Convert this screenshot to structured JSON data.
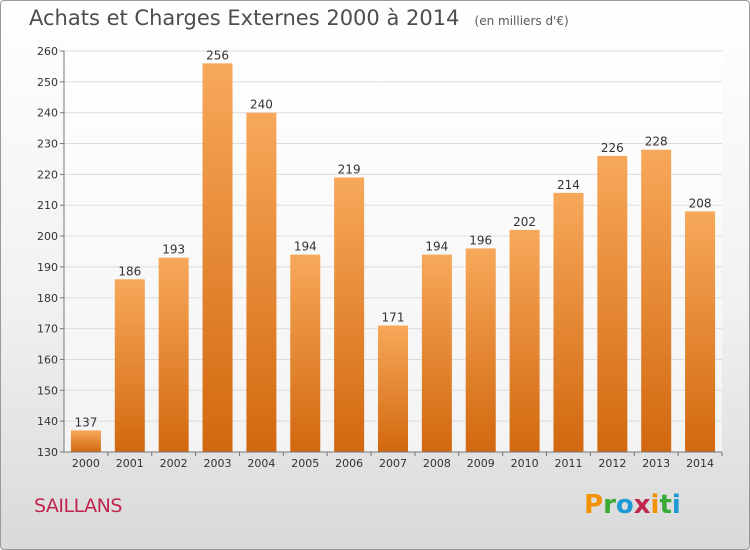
{
  "title": "Achats et Charges Externes 2000 à 2014",
  "unit": "(en milliers d'€)",
  "commune": "SAILLANS",
  "logo": {
    "letters": [
      "P",
      "r",
      "o",
      "x",
      "i",
      "t",
      "i"
    ],
    "colors": [
      "#f39200",
      "#3aa935",
      "#1d9ad6",
      "#c0264d",
      "#f39200",
      "#3aa935",
      "#1d9ad6"
    ]
  },
  "colors": {
    "bar_top": "#f7a85a",
    "bar_bottom": "#d2680f",
    "grid": "#dcdcdc"
  },
  "chart_data": {
    "type": "bar",
    "categories": [
      "2000",
      "2001",
      "2002",
      "2003",
      "2004",
      "2005",
      "2006",
      "2007",
      "2008",
      "2009",
      "2010",
      "2011",
      "2012",
      "2013",
      "2014"
    ],
    "values": [
      137,
      186,
      193,
      256,
      240,
      194,
      219,
      171,
      194,
      196,
      202,
      214,
      226,
      228,
      208
    ],
    "title": "Achats et Charges Externes 2000 à 2014",
    "xlabel": "",
    "ylabel": "",
    "ylim": [
      130,
      260
    ],
    "yticks": [
      130,
      140,
      150,
      160,
      170,
      180,
      190,
      200,
      210,
      220,
      230,
      240,
      250,
      260
    ],
    "grid": true,
    "data_labels": true
  }
}
